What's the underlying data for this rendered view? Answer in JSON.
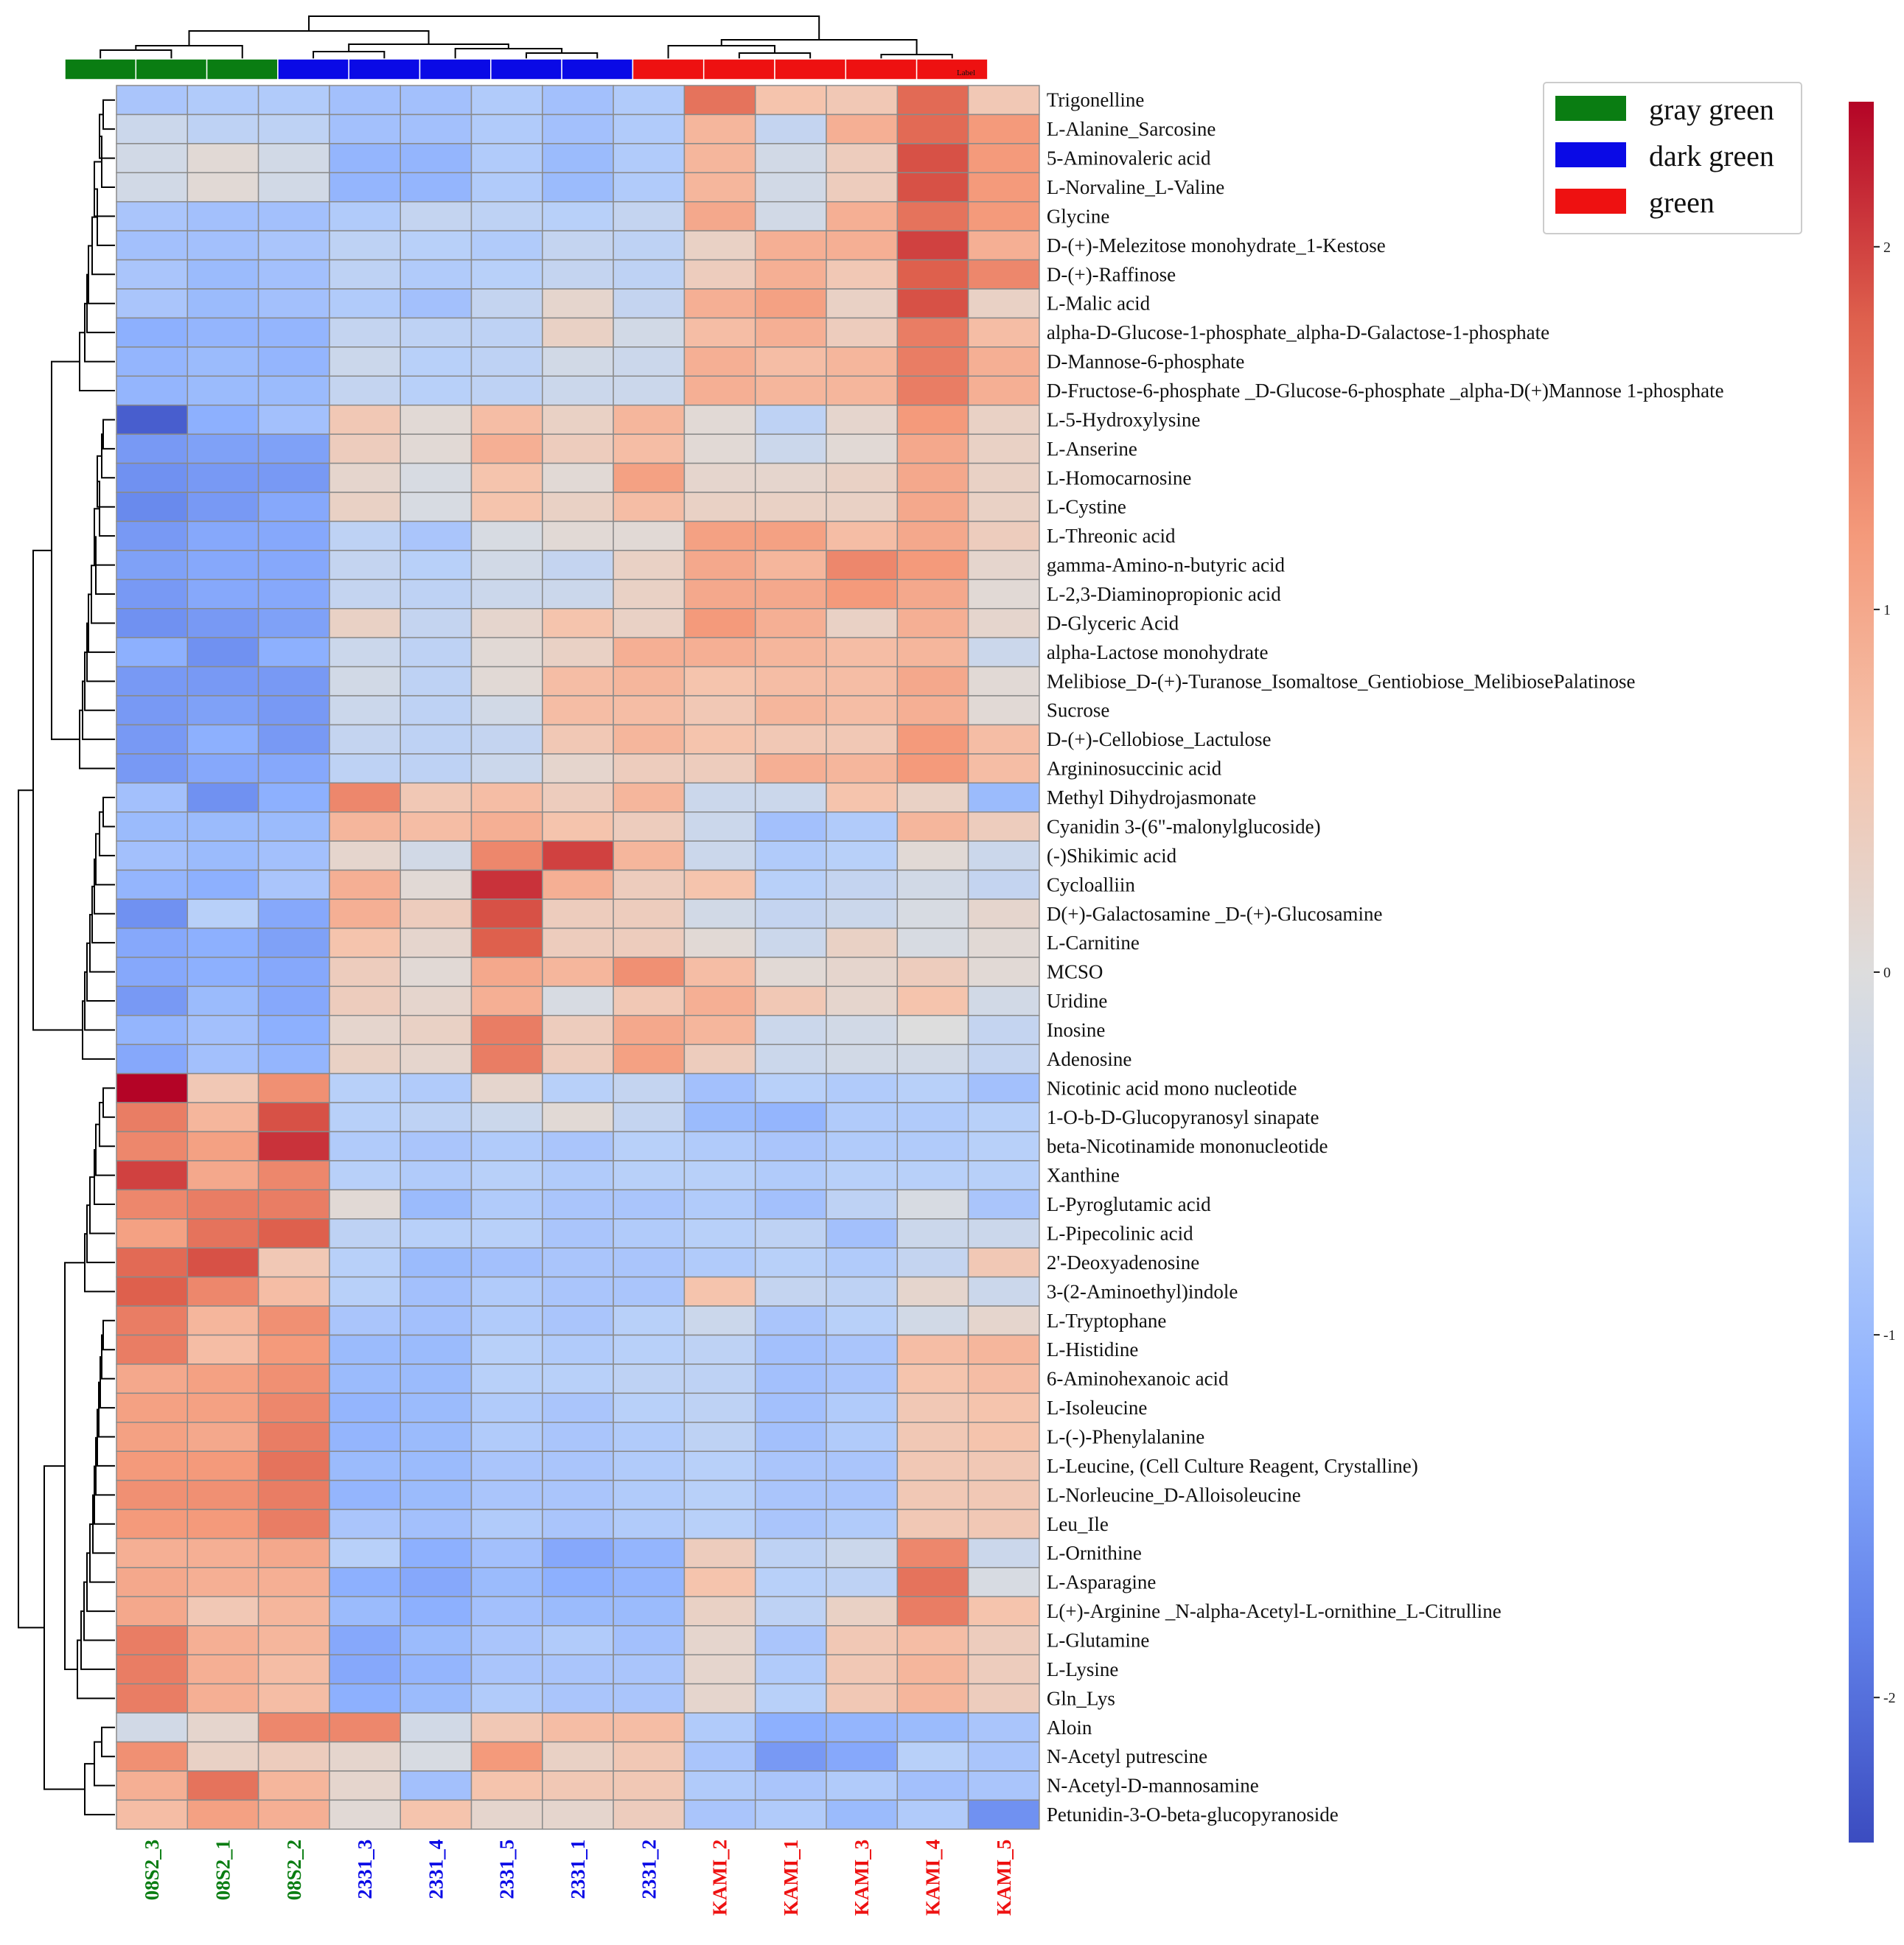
{
  "chart_data": {
    "type": "heatmap",
    "title": "",
    "columns": [
      "08S2_3",
      "08S2_1",
      "08S2_2",
      "2331_3",
      "2331_4",
      "2331_5",
      "2331_1",
      "2331_2",
      "KAMI_2",
      "KAMI_1",
      "KAMI_3",
      "KAMI_4",
      "KAMI_5"
    ],
    "column_groups": [
      "gray green",
      "gray green",
      "gray green",
      "dark green",
      "dark green",
      "dark green",
      "dark green",
      "dark green",
      "green",
      "green",
      "green",
      "green",
      "green"
    ],
    "group_bar_label": "Label",
    "legend": [
      {
        "name": "gray green",
        "color": "#0a7d12"
      },
      {
        "name": "dark green",
        "color": "#0a0ae6"
      },
      {
        "name": "green",
        "color": "#ee1111"
      }
    ],
    "colorbar": {
      "min": -2.4,
      "max": 2.4,
      "ticks": [
        "-2",
        "-1",
        "0",
        "1",
        "2"
      ],
      "tick_values": [
        -2,
        -1,
        0,
        1,
        2
      ]
    },
    "rows": [
      "Trigonelline",
      "L-Alanine_Sarcosine",
      "5-Aminovaleric acid",
      "L-Norvaline_L-Valine",
      "Glycine",
      "D-(+)-Melezitose monohydrate_1-Kestose",
      "D-(+)-Raffinose",
      "L-Malic acid",
      "alpha-D-Glucose-1-phosphate_alpha-D-Galactose-1-phosphate",
      "D-Mannose-6-phosphate",
      "D-Fructose-6-phosphate _D-Glucose-6-phosphate _alpha-D(+)Mannose 1-phosphate",
      "L-5-Hydroxylysine",
      "L-Anserine",
      "L-Homocarnosine",
      "L-Cystine",
      "L-Threonic acid",
      "gamma-Amino-n-butyric acid",
      "L-2,3-Diaminopropionic acid",
      "D-Glyceric Acid",
      "alpha-Lactose monohydrate",
      "Melibiose_D-(+)-Turanose_Isomaltose_Gentiobiose_MelibiosePalatinose",
      "Sucrose",
      "D-(+)-Cellobiose_Lactulose",
      "Argininosuccinic acid",
      "Methyl Dihydrojasmonate",
      "Cyanidin 3-(6\"-malonylglucoside)",
      "(-)Shikimic acid",
      "Cycloalliin",
      "D(+)-Galactosamine _D-(+)-Glucosamine",
      "L-Carnitine",
      "MCSO",
      "Uridine",
      "Inosine",
      "Adenosine",
      "Nicotinic acid mono nucleotide",
      "1-O-b-D-Glucopyranosyl sinapate",
      "beta-Nicotinamide mononucleotide",
      "Xanthine",
      "L-Pyroglutamic acid",
      "L-Pipecolinic acid",
      "2'-Deoxyadenosine",
      "3-(2-Aminoethyl)indole",
      "L-Tryptophane",
      "L-Histidine",
      "6-Aminohexanoic acid",
      "L-Isoleucine",
      "L-(-)-Phenylalanine",
      "L-Leucine, (Cell Culture Reagent, Crystalline)",
      "L-Norleucine_D-Alloisoleucine",
      "Leu_Ile",
      "L-Ornithine",
      "L-Asparagine",
      "L(+)-Arginine _N-alpha-Acetyl-L-ornithine_L-Citrulline",
      "L-Glutamine",
      "L-Lysine",
      "Gln_Lys",
      "Aloin",
      "N-Acetyl putrescine",
      "N-Acetyl-D-mannosamine",
      "Petunidin-3-O-beta-glucopyranoside"
    ],
    "values": [
      [
        -0.8,
        -0.7,
        -0.7,
        -0.9,
        -0.9,
        -0.7,
        -0.9,
        -0.7,
        1.6,
        0.6,
        0.5,
        1.7,
        0.5
      ],
      [
        -0.3,
        -0.5,
        -0.5,
        -0.9,
        -0.9,
        -0.7,
        -0.9,
        -0.7,
        0.8,
        -0.4,
        0.9,
        1.7,
        1.2
      ],
      [
        -0.2,
        0.1,
        -0.2,
        -1.1,
        -1.1,
        -0.7,
        -1.0,
        -0.7,
        0.8,
        -0.2,
        0.4,
        1.9,
        1.2
      ],
      [
        -0.2,
        0.1,
        -0.2,
        -1.1,
        -1.1,
        -0.7,
        -1.0,
        -0.7,
        0.8,
        -0.2,
        0.4,
        1.9,
        1.2
      ],
      [
        -0.8,
        -0.9,
        -0.9,
        -0.7,
        -0.4,
        -0.5,
        -0.6,
        -0.4,
        1.0,
        -0.2,
        0.9,
        1.6,
        1.2
      ],
      [
        -0.9,
        -0.9,
        -0.8,
        -0.5,
        -0.6,
        -0.7,
        -0.4,
        -0.5,
        0.3,
        0.9,
        0.9,
        2.0,
        0.9
      ],
      [
        -0.8,
        -1.0,
        -0.9,
        -0.5,
        -0.7,
        -0.6,
        -0.4,
        -0.5,
        0.4,
        0.9,
        0.5,
        1.8,
        1.4
      ],
      [
        -0.8,
        -1.0,
        -0.9,
        -0.7,
        -0.9,
        -0.4,
        0.2,
        -0.4,
        0.9,
        1.1,
        0.3,
        1.9,
        0.3
      ],
      [
        -1.2,
        -1.1,
        -1.1,
        -0.4,
        -0.5,
        -0.5,
        0.3,
        -0.2,
        0.7,
        0.9,
        0.4,
        1.5,
        0.7
      ],
      [
        -1.1,
        -1.0,
        -1.1,
        -0.3,
        -0.6,
        -0.5,
        -0.2,
        -0.3,
        0.9,
        0.7,
        0.8,
        1.5,
        0.9
      ],
      [
        -1.1,
        -1.0,
        -1.0,
        -0.4,
        -0.6,
        -0.5,
        -0.3,
        -0.3,
        0.9,
        0.8,
        0.8,
        1.5,
        0.9
      ],
      [
        -2.2,
        -1.2,
        -0.9,
        0.5,
        0.1,
        0.7,
        0.3,
        0.8,
        0.1,
        -0.5,
        0.2,
        1.2,
        0.3
      ],
      [
        -1.5,
        -1.4,
        -1.4,
        0.4,
        0.1,
        0.9,
        0.4,
        0.7,
        0.1,
        -0.3,
        0.1,
        1.0,
        0.3
      ],
      [
        -1.6,
        -1.5,
        -1.5,
        0.2,
        -0.1,
        0.6,
        0.1,
        1.1,
        0.2,
        0.2,
        0.3,
        1.0,
        0.3
      ],
      [
        -1.7,
        -1.5,
        -1.3,
        0.3,
        -0.1,
        0.6,
        0.3,
        0.7,
        0.3,
        0.3,
        0.3,
        1.0,
        0.3
      ],
      [
        -1.5,
        -1.3,
        -1.3,
        -0.5,
        -0.8,
        -0.1,
        0.1,
        0.1,
        1.1,
        1.1,
        0.7,
        1.0,
        0.4
      ],
      [
        -1.4,
        -1.3,
        -1.3,
        -0.4,
        -0.6,
        -0.2,
        -0.4,
        0.3,
        1.0,
        0.8,
        1.4,
        1.2,
        0.2
      ],
      [
        -1.5,
        -1.3,
        -1.3,
        -0.4,
        -0.5,
        -0.3,
        -0.3,
        0.3,
        1.0,
        1.0,
        1.2,
        1.0,
        0.1
      ],
      [
        -1.6,
        -1.5,
        -1.4,
        0.3,
        -0.4,
        0.2,
        0.6,
        0.3,
        1.2,
        0.9,
        0.3,
        0.9,
        0.2
      ],
      [
        -1.2,
        -1.6,
        -1.2,
        -0.3,
        -0.5,
        0.1,
        0.3,
        0.9,
        0.9,
        0.8,
        0.7,
        0.8,
        -0.3
      ],
      [
        -1.5,
        -1.5,
        -1.5,
        -0.2,
        -0.5,
        0.1,
        0.7,
        0.8,
        0.6,
        0.7,
        0.7,
        1.0,
        0.1
      ],
      [
        -1.5,
        -1.4,
        -1.5,
        -0.3,
        -0.5,
        -0.2,
        0.7,
        0.7,
        0.5,
        0.8,
        0.7,
        0.9,
        0.1
      ],
      [
        -1.5,
        -1.2,
        -1.5,
        -0.4,
        -0.5,
        -0.4,
        0.5,
        0.8,
        0.6,
        0.5,
        0.5,
        1.2,
        0.7
      ],
      [
        -1.5,
        -1.3,
        -1.3,
        -0.5,
        -0.5,
        -0.3,
        0.2,
        0.4,
        0.4,
        0.9,
        0.8,
        1.2,
        0.7
      ],
      [
        -0.9,
        -1.6,
        -1.2,
        1.4,
        0.5,
        0.7,
        0.4,
        0.8,
        -0.3,
        -0.3,
        0.6,
        0.3,
        -1.0
      ],
      [
        -1.0,
        -1.0,
        -1.0,
        0.8,
        0.7,
        0.9,
        0.6,
        0.4,
        -0.3,
        -0.9,
        -0.7,
        0.8,
        0.4
      ],
      [
        -0.9,
        -1.0,
        -0.9,
        0.2,
        -0.2,
        1.4,
        2.0,
        0.8,
        -0.3,
        -0.7,
        -0.6,
        0.1,
        -0.3
      ],
      [
        -1.1,
        -1.2,
        -0.8,
        0.9,
        0.1,
        2.1,
        0.9,
        0.4,
        0.6,
        -0.6,
        -0.4,
        -0.2,
        -0.4
      ],
      [
        -1.6,
        -0.6,
        -1.3,
        0.9,
        0.4,
        1.9,
        0.4,
        0.4,
        -0.2,
        -0.4,
        -0.3,
        -0.1,
        0.2
      ],
      [
        -1.3,
        -1.2,
        -1.4,
        0.6,
        0.2,
        1.8,
        0.4,
        0.4,
        0.1,
        -0.3,
        0.3,
        -0.1,
        0.1
      ],
      [
        -1.3,
        -1.2,
        -1.3,
        0.4,
        0.1,
        1.0,
        0.8,
        1.3,
        0.7,
        0.1,
        0.2,
        0.4,
        0.1
      ],
      [
        -1.5,
        -1.0,
        -1.3,
        0.4,
        0.2,
        0.9,
        -0.1,
        0.5,
        0.9,
        0.5,
        0.2,
        0.6,
        -0.2
      ],
      [
        -1.1,
        -0.9,
        -1.2,
        0.2,
        0.3,
        1.5,
        0.4,
        1.0,
        0.8,
        -0.3,
        -0.2,
        0.0,
        -0.4
      ],
      [
        -1.3,
        -0.9,
        -1.1,
        0.3,
        0.2,
        1.5,
        0.4,
        1.1,
        0.4,
        -0.3,
        -0.2,
        -0.2,
        -0.4
      ],
      [
        2.4,
        0.5,
        1.3,
        -0.6,
        -0.7,
        0.2,
        -0.6,
        -0.4,
        -0.9,
        -0.6,
        -0.7,
        -0.6,
        -0.9
      ],
      [
        1.5,
        0.8,
        1.9,
        -0.6,
        -0.5,
        -0.3,
        0.1,
        -0.4,
        -1.0,
        -1.1,
        -0.7,
        -0.7,
        -0.6
      ],
      [
        1.4,
        1.1,
        2.1,
        -0.7,
        -0.8,
        -0.7,
        -0.8,
        -0.6,
        -0.7,
        -0.8,
        -0.7,
        -0.7,
        -0.6
      ],
      [
        2.0,
        1.0,
        1.4,
        -0.6,
        -0.7,
        -0.6,
        -0.7,
        -0.6,
        -0.6,
        -0.7,
        -0.6,
        -0.6,
        -0.6
      ],
      [
        1.4,
        1.5,
        1.5,
        0.1,
        -1.0,
        -0.7,
        -0.8,
        -0.8,
        -0.7,
        -0.9,
        -0.5,
        -0.1,
        -0.8
      ],
      [
        1.1,
        1.6,
        1.8,
        -0.5,
        -0.6,
        -0.6,
        -0.8,
        -0.7,
        -0.6,
        -0.5,
        -0.9,
        -0.3,
        -0.3
      ],
      [
        1.7,
        1.9,
        0.5,
        -0.6,
        -1.0,
        -0.9,
        -0.8,
        -0.8,
        -0.7,
        -0.6,
        -0.7,
        -0.4,
        0.5
      ],
      [
        1.8,
        1.4,
        0.7,
        -0.6,
        -0.9,
        -0.7,
        -0.8,
        -0.8,
        0.6,
        -0.4,
        -0.5,
        0.2,
        -0.3
      ],
      [
        1.5,
        0.8,
        1.3,
        -0.8,
        -0.9,
        -0.7,
        -0.8,
        -0.6,
        -0.3,
        -0.8,
        -0.6,
        -0.2,
        0.2
      ],
      [
        1.5,
        0.7,
        1.2,
        -1.0,
        -1.0,
        -0.6,
        -0.7,
        -0.6,
        -0.5,
        -0.9,
        -0.8,
        0.7,
        0.8
      ],
      [
        1.0,
        1.1,
        1.3,
        -1.0,
        -1.0,
        -0.6,
        -0.6,
        -0.5,
        -0.5,
        -0.9,
        -0.8,
        0.6,
        0.7
      ],
      [
        1.1,
        1.1,
        1.4,
        -1.1,
        -1.0,
        -0.7,
        -0.8,
        -0.6,
        -0.5,
        -0.9,
        -0.7,
        0.5,
        0.6
      ],
      [
        1.1,
        1.0,
        1.5,
        -1.1,
        -1.0,
        -0.7,
        -0.8,
        -0.7,
        -0.5,
        -0.9,
        -0.7,
        0.5,
        0.6
      ],
      [
        1.2,
        1.2,
        1.6,
        -1.0,
        -1.0,
        -0.8,
        -0.8,
        -0.7,
        -0.6,
        -0.8,
        -0.8,
        0.5,
        0.5
      ],
      [
        1.3,
        1.3,
        1.5,
        -1.1,
        -1.0,
        -0.8,
        -0.8,
        -0.7,
        -0.6,
        -0.8,
        -0.8,
        0.5,
        0.5
      ],
      [
        1.2,
        1.2,
        1.5,
        -0.8,
        -0.9,
        -0.7,
        -0.8,
        -0.7,
        -0.6,
        -0.8,
        -0.7,
        0.5,
        0.5
      ],
      [
        0.9,
        0.9,
        1.0,
        -0.6,
        -1.2,
        -0.9,
        -1.3,
        -1.1,
        0.4,
        -0.5,
        -0.3,
        1.4,
        -0.3
      ],
      [
        1.0,
        0.9,
        0.9,
        -1.2,
        -1.3,
        -1.0,
        -1.2,
        -1.1,
        0.6,
        -0.6,
        -0.5,
        1.6,
        -0.1
      ],
      [
        1.0,
        0.5,
        0.8,
        -1.0,
        -1.2,
        -0.9,
        -1.0,
        -1.0,
        0.3,
        -0.5,
        0.3,
        1.5,
        0.6
      ],
      [
        1.5,
        0.9,
        0.8,
        -1.3,
        -1.0,
        -0.8,
        -0.7,
        -0.9,
        0.2,
        -0.8,
        0.5,
        0.7,
        0.4
      ],
      [
        1.5,
        0.9,
        0.7,
        -1.3,
        -1.1,
        -0.8,
        -0.8,
        -0.8,
        0.2,
        -0.7,
        0.5,
        0.8,
        0.4
      ],
      [
        1.5,
        0.9,
        0.7,
        -1.2,
        -1.0,
        -0.7,
        -0.8,
        -0.8,
        0.2,
        -0.6,
        0.5,
        0.8,
        0.4
      ],
      [
        -0.2,
        0.2,
        1.4,
        1.4,
        -0.2,
        0.5,
        0.7,
        0.7,
        -0.7,
        -1.2,
        -1.1,
        -1.0,
        -0.8
      ],
      [
        1.3,
        0.3,
        0.4,
        0.2,
        -0.1,
        1.2,
        0.3,
        0.5,
        -0.8,
        -1.5,
        -1.3,
        -0.6,
        -0.8
      ],
      [
        0.9,
        1.6,
        0.8,
        0.2,
        -0.9,
        0.6,
        0.5,
        0.5,
        -0.7,
        -0.8,
        -0.7,
        -0.9,
        -0.8
      ],
      [
        0.7,
        1.1,
        0.9,
        0.1,
        0.6,
        0.2,
        0.2,
        0.4,
        -0.8,
        -0.7,
        -1.0,
        -0.7,
        -1.6
      ]
    ]
  }
}
